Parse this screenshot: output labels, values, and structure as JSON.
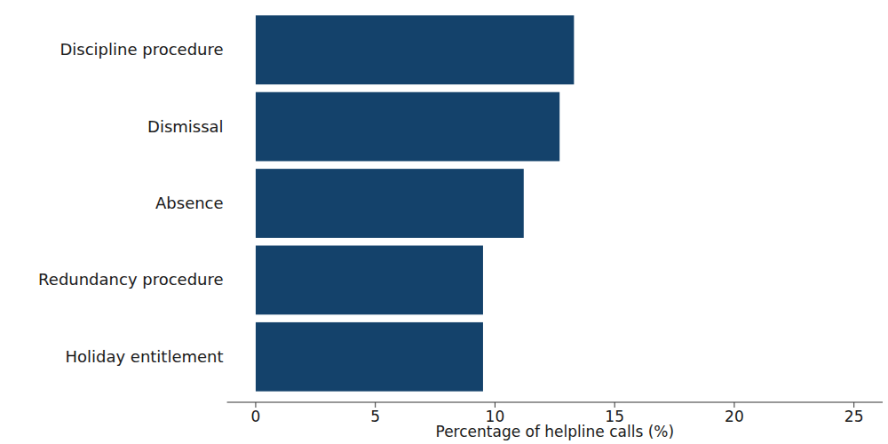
{
  "chart_data": {
    "type": "bar",
    "orientation": "horizontal",
    "categories": [
      "Discipline procedure",
      "Dismissal",
      "Absence",
      "Redundancy procedure",
      "Holiday entitlement"
    ],
    "values": [
      13.3,
      12.7,
      11.2,
      9.5,
      9.5
    ],
    "color": "#14426b",
    "x_label": "Percentage of helpline calls (%)",
    "xlim": [
      -1.2,
      26.2
    ],
    "xticks": [
      0,
      5,
      10,
      15,
      20,
      25
    ],
    "grid": false
  }
}
